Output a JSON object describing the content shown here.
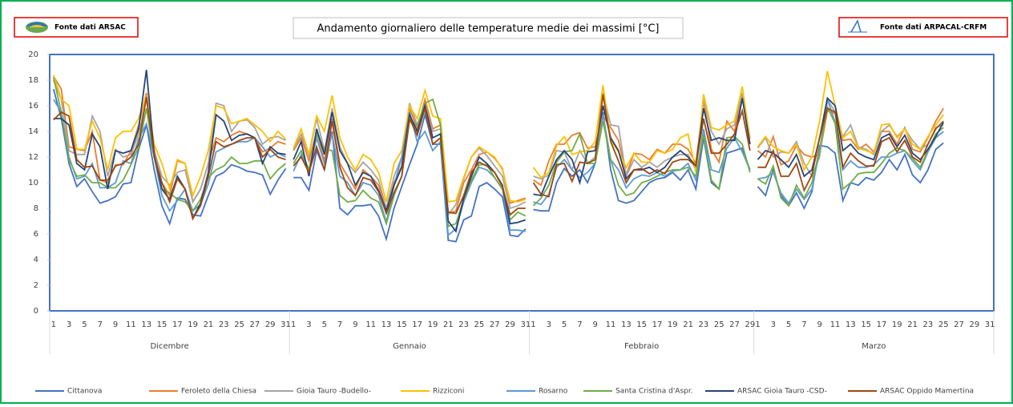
{
  "header": {
    "left_source": "Fonte dati ARSAC",
    "right_source": "Fonte dati ARPACAL-CRFM"
  },
  "chart_data": {
    "type": "line",
    "title": "Andamento giornaliero delle temperature medie dei massimi [°C]",
    "categories": [
      "1",
      null,
      "3",
      null,
      "5",
      null,
      "7",
      null,
      "9",
      null,
      "11",
      null,
      "13",
      null,
      "15",
      null,
      "17",
      null,
      "19",
      null,
      "21",
      null,
      "23",
      null,
      "25",
      null,
      "27",
      null,
      "29",
      null,
      "31",
      "1",
      null,
      "3",
      null,
      "5",
      null,
      "7",
      null,
      "9",
      null,
      "11",
      null,
      "13",
      null,
      "15",
      null,
      "17",
      null,
      "19",
      null,
      "21",
      null,
      "23",
      null,
      "25",
      null,
      "27",
      null,
      "29",
      null,
      "31",
      "1",
      null,
      "3",
      null,
      "5",
      null,
      "7",
      null,
      "9",
      null,
      "11",
      null,
      "13",
      null,
      "15",
      null,
      "17",
      null,
      "19",
      null,
      "21",
      null,
      "23",
      null,
      "25",
      null,
      "27",
      null,
      "29",
      "1",
      null,
      "3",
      null,
      "5",
      null,
      "7",
      null,
      "9",
      null,
      "11",
      null,
      "13",
      null,
      "15",
      null,
      "17",
      null,
      "19",
      null,
      "21",
      null,
      "23",
      null,
      "25",
      null,
      "27",
      null,
      "29",
      null,
      "31"
    ],
    "category_groups": [
      "Dicembre",
      "Gennaio",
      "Febbraio",
      "Marzo"
    ],
    "ylim": [
      0,
      20
    ],
    "yticks": [
      0,
      2,
      4,
      6,
      8,
      10,
      12,
      14,
      16,
      18,
      20
    ],
    "grid": false,
    "series": [
      {
        "name": "Cittanova",
        "color": "#4472c4",
        "values": [
          17.3,
          15,
          11.5,
          9.7,
          10.3,
          9.3,
          8.4,
          8.6,
          8.9,
          9.9,
          10,
          12.6,
          14.5,
          11,
          8.2,
          6.8,
          8.8,
          8.7,
          7.5,
          7.4,
          9,
          10.5,
          10.8,
          11.4,
          11.2,
          10.9,
          10.8,
          10.6,
          9.1,
          10.2,
          11.1,
          10.4,
          10.4,
          9.4,
          12.5,
          11,
          14,
          8,
          7.5,
          8.2,
          8.2,
          8.3,
          7.4,
          5.6,
          8,
          9.7,
          11.4,
          13,
          15.3,
          13,
          13,
          5.5,
          5.4,
          7.1,
          7.4,
          9.7,
          10,
          9.5,
          8.9,
          5.9,
          5.8,
          6.4,
          7.9,
          7.8,
          7.8,
          10,
          11.1,
          10.5,
          11,
          10,
          11.5,
          15.5,
          11,
          8.6,
          8.4,
          8.6,
          9.3,
          10,
          10.3,
          10.4,
          10.8,
          10.2,
          11,
          9.5,
          13.5,
          10,
          9.5,
          12.3,
          12.5,
          12.7,
          11,
          9.7,
          9,
          11,
          9,
          8.2,
          9.2,
          8,
          9.3,
          12.9,
          12.8,
          12.3,
          8.6,
          10,
          9.8,
          10.4,
          10.2,
          10.8,
          11.8,
          11,
          12.2,
          10.6,
          10,
          11,
          12.6,
          13.1,
          null,
          null,
          null,
          null,
          null,
          null
        ]
      },
      {
        "name": "Feroleto della Chiesa",
        "color": "#ed7d31",
        "values": [
          18.3,
          17.3,
          12.8,
          12.6,
          12.5,
          14,
          10.2,
          10,
          11.4,
          11.4,
          12.5,
          14.5,
          17,
          12.6,
          10,
          9,
          11.7,
          11.5,
          8.5,
          9.5,
          11.5,
          13.5,
          13.2,
          13.7,
          14,
          13.8,
          13.5,
          12.4,
          12.7,
          13.2,
          13,
          12.5,
          13.5,
          11.7,
          14,
          11.7,
          15,
          11.5,
          10.5,
          9.5,
          11,
          10.5,
          9.8,
          7.9,
          10,
          11.3,
          15.8,
          14.2,
          16.5,
          14.2,
          14.5,
          7.6,
          7.8,
          10,
          11,
          12.2,
          12.4,
          11.9,
          11.1,
          8.4,
          8.6,
          8.8,
          10.2,
          9.8,
          11.7,
          13,
          13,
          13.7,
          13.9,
          12.7,
          12.8,
          15.2,
          14.3,
          13.3,
          10.6,
          12.3,
          12.2,
          11.8,
          12.6,
          12.3,
          13,
          13,
          12.6,
          11.5,
          16.4,
          12.6,
          11.6,
          14.8,
          14,
          16.8,
          13,
          12.5,
          12,
          13.6,
          11.4,
          11.7,
          12.9,
          12.2,
          12,
          12.2,
          15.6,
          15.4,
          13.3,
          13.4,
          12.6,
          13,
          12.4,
          14,
          14,
          13,
          14.3,
          12.6,
          12.4,
          13.5,
          14.8,
          15.8,
          null,
          null,
          null,
          null,
          null,
          null
        ]
      },
      {
        "name": "Gioia Tauro -Budello-",
        "color": "#a5a5a5",
        "values": [
          18,
          16.5,
          12.5,
          12.2,
          12.2,
          15.2,
          14,
          10.5,
          12.6,
          12,
          12.2,
          13.8,
          16.5,
          12.5,
          10.5,
          9.8,
          10.8,
          11,
          8.5,
          9.5,
          11.5,
          16.2,
          16,
          14,
          14.8,
          14.9,
          14.3,
          13,
          13.5,
          13.6,
          13.3,
          12.6,
          13.8,
          12.1,
          15,
          12.5,
          15.8,
          12.8,
          11.5,
          10.8,
          11.6,
          11,
          10.2,
          8,
          10.5,
          12,
          16.2,
          14.5,
          16,
          14,
          14.2,
          7.5,
          8.3,
          10.3,
          12,
          12.7,
          12.1,
          11.3,
          10.5,
          8,
          8.2,
          8.5,
          10.5,
          10.3,
          10.6,
          12.5,
          12.4,
          11,
          12.5,
          11.5,
          12,
          17,
          14.5,
          14.4,
          10.5,
          11.8,
          11.2,
          11.6,
          11.2,
          11.7,
          12,
          12.2,
          12.2,
          11,
          16.5,
          14,
          13,
          14.2,
          14.5,
          17,
          13.5,
          12.7,
          13.5,
          12,
          12.4,
          12.3,
          13.2,
          11.5,
          10.5,
          12,
          16.5,
          15.5,
          13.6,
          14.5,
          12.8,
          12.6,
          12.2,
          14,
          14.5,
          13.6,
          14.2,
          13.3,
          12.6,
          13,
          14.3,
          14.5,
          null,
          null,
          null,
          null,
          null,
          null
        ]
      },
      {
        "name": "Rizziconi",
        "color": "#ffc000",
        "values": [
          18.4,
          16.5,
          16,
          12.6,
          12.6,
          14.8,
          13.5,
          11,
          13.5,
          14,
          14,
          15,
          16.8,
          13,
          11.5,
          9.5,
          11.8,
          11.5,
          9,
          10.5,
          12.5,
          16,
          15.8,
          14.6,
          14.8,
          15,
          14.5,
          14,
          13.2,
          14,
          13.4,
          12.7,
          14.2,
          12.2,
          15.2,
          14,
          16.8,
          13.5,
          12,
          11,
          12.2,
          11.8,
          10.8,
          8.5,
          11.5,
          12.5,
          16,
          15,
          17.2,
          15.2,
          15,
          8.5,
          8.6,
          10.4,
          12,
          12.8,
          12.4,
          12,
          11,
          8.6,
          8.5,
          8.7,
          11.2,
          10.4,
          10.8,
          12.9,
          13.6,
          12.2,
          12.4,
          12.5,
          13.2,
          17.6,
          13.3,
          12.4,
          11.2,
          12.3,
          11.6,
          11.6,
          12.5,
          12.3,
          12.6,
          13.5,
          13.8,
          10.8,
          16.9,
          14.3,
          14.1,
          14.5,
          14.8,
          17.5,
          13.4,
          12.8,
          13.6,
          12.8,
          12.5,
          12.3,
          13,
          11,
          12,
          14.8,
          18.7,
          16,
          13.5,
          14,
          12.7,
          12.5,
          12.3,
          14.5,
          14.6,
          13.5,
          14.2,
          13,
          12.6,
          13.6,
          14.5,
          15.3,
          null,
          null,
          null,
          null,
          null,
          null
        ]
      },
      {
        "name": "Rosarno",
        "color": "#5b9bd5",
        "values": [
          16.5,
          15.5,
          12,
          10.3,
          10.5,
          11.5,
          9.6,
          9.6,
          10,
          11.7,
          11.5,
          13.4,
          14.6,
          12,
          9,
          7.8,
          8.6,
          9.5,
          7.8,
          8.3,
          9.9,
          12.4,
          12.7,
          13,
          13.2,
          13.2,
          13.5,
          12.8,
          12,
          12.3,
          12,
          10.9,
          12.2,
          10.8,
          13.5,
          11.5,
          13.8,
          10.5,
          10,
          9,
          10,
          9.8,
          9,
          6.9,
          9.8,
          12,
          15.5,
          13.2,
          14,
          12.5,
          13.2,
          5.9,
          6.4,
          8.5,
          10,
          11.2,
          11,
          10.4,
          9.5,
          6.3,
          6.3,
          6.2,
          8.5,
          8.3,
          9.1,
          11.2,
          11.8,
          11,
          10.4,
          10.8,
          11.5,
          15.3,
          11.8,
          11,
          9.6,
          10.3,
          10.6,
          10.5,
          10.8,
          10.5,
          10.9,
          11,
          11.5,
          10.2,
          14.2,
          11,
          10.8,
          12.7,
          13.5,
          12.4,
          11,
          10.3,
          10.4,
          10.8,
          9.2,
          8.4,
          9.5,
          8.7,
          9.5,
          12.5,
          16.5,
          14.7,
          11,
          11.7,
          11.2,
          11.2,
          11.4,
          12,
          12,
          12.3,
          12.5,
          11.7,
          11,
          12.4,
          13.5,
          14,
          null,
          null,
          null,
          null,
          null,
          null
        ]
      },
      {
        "name": "Santa Cristina d'Aspr.",
        "color": "#70ad47",
        "values": [
          18.2,
          15.5,
          11.8,
          10.5,
          10.6,
          10,
          10,
          9.6,
          9.6,
          10.2,
          11.4,
          12.8,
          15.8,
          12,
          9.5,
          9.2,
          8.7,
          8.5,
          7.8,
          8.7,
          10.4,
          11,
          11.3,
          12,
          11.5,
          11.5,
          11.7,
          11.7,
          10.3,
          11,
          11.5,
          11.5,
          12.5,
          11,
          13.8,
          12.6,
          12.5,
          9,
          8.5,
          8.6,
          9.4,
          8.8,
          8.5,
          6.8,
          9,
          10.5,
          14.8,
          14.5,
          16.2,
          16.5,
          14.5,
          6.6,
          6.8,
          8.7,
          10.2,
          11.4,
          11.4,
          10.4,
          9.5,
          7.1,
          7.7,
          7.4,
          8.2,
          8.8,
          9.8,
          11.6,
          12.4,
          12.5,
          13.8,
          11.5,
          11.5,
          14.8,
          11.8,
          9.8,
          9,
          9.2,
          10,
          10.2,
          10.5,
          10.8,
          11,
          11,
          11.2,
          10.5,
          13.8,
          10.2,
          9.5,
          13.5,
          13.6,
          13,
          10.8,
          10.3,
          9.9,
          11.3,
          8.8,
          8.2,
          9.8,
          8.8,
          10,
          12.5,
          15.9,
          14.6,
          9.5,
          10,
          10.7,
          10.8,
          10.8,
          11.5,
          12.3,
          12.7,
          12.5,
          11.9,
          11.2,
          12.5,
          13.8,
          14.3,
          null,
          null,
          null,
          null,
          null,
          null
        ]
      },
      {
        "name": "ARSAC Gioia Tauro -CSD-",
        "color": "#264478",
        "values": [
          15,
          15,
          14.5,
          11.5,
          11,
          13.8,
          12.8,
          9.5,
          12.5,
          12.3,
          12.5,
          14.2,
          18.8,
          12.2,
          9.5,
          8.7,
          10.5,
          9.5,
          7.2,
          8.4,
          10.8,
          15.3,
          14.8,
          13.3,
          13.7,
          13.8,
          13.5,
          11.5,
          12.8,
          12.3,
          12.2,
          11.8,
          13.2,
          10.5,
          14.2,
          12.2,
          15.5,
          12.5,
          11.5,
          9.8,
          10.8,
          10.5,
          9.4,
          7.8,
          9.8,
          11.2,
          15.3,
          14,
          16,
          13.5,
          13.8,
          7,
          6.2,
          8.8,
          10.5,
          12,
          11.5,
          10.8,
          9.8,
          6.8,
          6.9,
          7.1,
          9.1,
          9,
          10.5,
          11.8,
          12.5,
          11.8,
          10,
          12.4,
          12.5,
          16,
          13.5,
          12.5,
          10.3,
          11,
          11,
          11.2,
          10.8,
          11.2,
          12,
          12.5,
          12,
          11.3,
          15.8,
          13.3,
          13.5,
          13.3,
          13.3,
          16.6,
          13,
          11.8,
          12.5,
          12.3,
          11.8,
          11.2,
          12.2,
          10.5,
          11,
          13.5,
          16.6,
          16,
          12.5,
          13,
          12.3,
          12,
          11.8,
          13.5,
          13.8,
          12.8,
          13.7,
          12.3,
          11.8,
          12.6,
          13.6,
          14.7,
          null,
          null,
          null,
          null,
          null,
          null
        ]
      },
      {
        "name": "ARSAC Oppido Mamertina",
        "color": "#9e480e",
        "values": [
          14.9,
          15.5,
          15.2,
          11.8,
          11.2,
          11.3,
          10.2,
          10.2,
          11.3,
          11.5,
          12,
          13,
          16.7,
          12,
          10,
          8.5,
          10.3,
          9.5,
          7.2,
          8.2,
          10.5,
          13.2,
          12.8,
          13,
          13.3,
          13.5,
          13.5,
          12,
          12.6,
          12,
          11.8,
          11.3,
          12,
          10.8,
          12.8,
          11,
          14.8,
          11.2,
          9.6,
          9,
          10.4,
          10.2,
          9.3,
          7.6,
          9.2,
          10.5,
          15,
          13.7,
          15.8,
          13,
          13.5,
          7.7,
          7.6,
          9,
          10.8,
          11.6,
          11.3,
          10.8,
          9.7,
          7.5,
          8,
          8,
          10,
          9.1,
          8.9,
          11.4,
          11.5,
          10.1,
          11.6,
          11.5,
          11.8,
          16.9,
          13.2,
          11.7,
          10,
          11,
          11.1,
          10.7,
          11,
          10.7,
          11.6,
          11.8,
          11.8,
          11.3,
          15,
          12.3,
          12.3,
          13,
          13.8,
          15.6,
          12.5,
          11.2,
          11.2,
          12.5,
          10.5,
          10.5,
          11.5,
          9.4,
          10.6,
          13.5,
          15.8,
          15.5,
          11.2,
          12.3,
          11.7,
          11.3,
          11.3,
          13.2,
          13.5,
          12.4,
          13.3,
          12,
          11.6,
          13,
          14.2,
          14.8,
          null,
          null,
          null,
          null,
          null,
          null
        ]
      }
    ]
  }
}
